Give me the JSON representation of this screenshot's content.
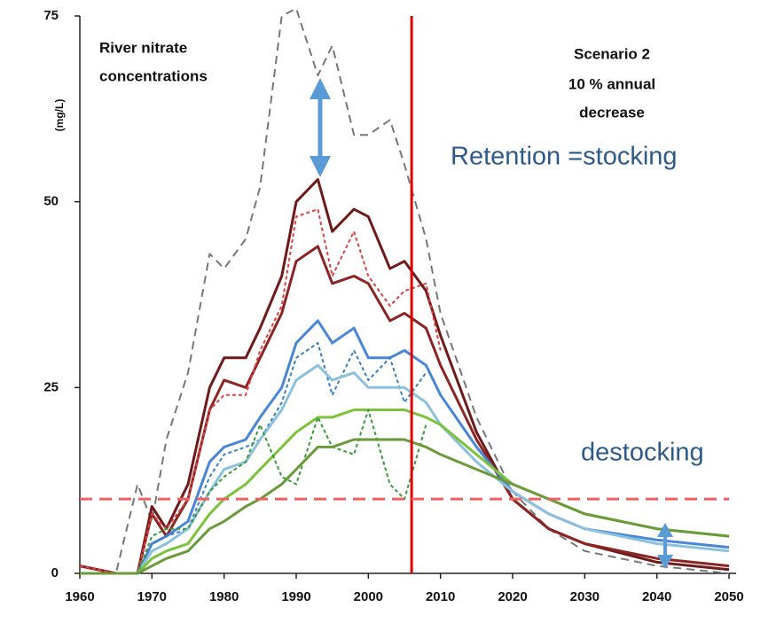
{
  "chart_data": {
    "type": "line",
    "y_label": "(mg/L)",
    "annotations": {
      "left": [
        "River nitrate",
        "concentrations"
      ],
      "right": [
        "Scenario 2",
        "10 % annual",
        "decrease"
      ],
      "retention": "Retention =stocking",
      "destocking": "destocking"
    },
    "x": [
      1960,
      1965,
      1968,
      1970,
      1972,
      1975,
      1978,
      1980,
      1983,
      1985,
      1988,
      1990,
      1993,
      1995,
      1998,
      2000,
      2003,
      2005,
      2008,
      2010,
      2015,
      2020,
      2025,
      2030,
      2040,
      2050
    ],
    "series": [
      {
        "color": "#777777",
        "dash": true,
        "values": [
          1,
          0,
          12,
          7,
          18,
          27,
          43,
          41,
          45,
          52,
          75,
          76,
          67,
          71,
          59,
          59,
          61,
          55,
          45,
          35,
          21,
          11,
          6,
          3,
          1,
          0
        ]
      },
      {
        "color": "#6e1a1a",
        "dash": false,
        "values": [
          1,
          0,
          0,
          9,
          6,
          12,
          25,
          29,
          29,
          33,
          40,
          50,
          53,
          46,
          49,
          48,
          41,
          42,
          38,
          32,
          19,
          10,
          6,
          4,
          1.5,
          0.5
        ]
      },
      {
        "color": "#8b2525",
        "dash": false,
        "values": [
          1,
          0,
          0,
          8,
          5,
          10,
          22,
          26,
          25,
          29,
          35,
          42,
          44,
          39,
          40,
          39,
          34,
          35,
          33,
          28,
          18,
          10,
          6,
          4,
          2,
          1
        ]
      },
      {
        "color": "#e04040",
        "dash": true,
        "values": [
          1,
          0,
          0,
          8,
          6,
          10,
          22,
          24,
          24,
          30,
          36,
          48,
          49,
          40,
          46,
          40,
          36,
          38,
          39,
          30,
          null,
          null,
          null,
          null,
          null,
          null
        ]
      },
      {
        "color": "#4a86d8",
        "dash": false,
        "values": [
          0,
          0,
          0,
          4,
          5,
          7,
          15,
          17,
          18,
          21,
          25,
          31,
          34,
          31,
          33,
          29,
          29,
          30,
          28,
          24,
          17,
          11,
          8,
          6,
          4.5,
          3.5
        ]
      },
      {
        "color": "#3a7fc0",
        "dash": true,
        "values": [
          0,
          0,
          0,
          4,
          5,
          6,
          13,
          16,
          17,
          18,
          23,
          29,
          31,
          24,
          30,
          26,
          29,
          23,
          27,
          null,
          null,
          null,
          null,
          null,
          null,
          null
        ]
      },
      {
        "color": "#8cc0dc",
        "dash": false,
        "values": [
          0,
          0,
          0,
          3,
          4,
          6,
          11,
          14,
          15,
          18,
          22,
          26,
          28,
          26,
          27,
          25,
          25,
          25,
          23,
          20,
          15,
          11,
          8,
          6,
          4,
          3
        ]
      },
      {
        "color": "#7cc23a",
        "dash": false,
        "values": [
          0,
          0,
          0,
          2,
          3,
          4,
          8,
          10,
          12,
          14,
          17,
          19,
          21,
          21,
          22,
          22,
          22,
          22,
          21,
          20,
          16,
          12,
          10,
          8,
          6,
          5
        ]
      },
      {
        "color": "#3a9a3a",
        "dash": true,
        "values": [
          0,
          0,
          0,
          5,
          6,
          6,
          11,
          13,
          15,
          20,
          13,
          12,
          21,
          17,
          16,
          22,
          12,
          10,
          20,
          null,
          null,
          null,
          null,
          null,
          null,
          null
        ]
      },
      {
        "color": "#6a9a3a",
        "dash": false,
        "values": [
          0,
          0,
          0,
          1,
          2,
          3,
          6,
          7,
          9,
          10,
          12,
          14,
          17,
          17,
          18,
          18,
          18,
          18,
          17,
          16,
          14,
          12,
          10,
          8,
          6,
          5
        ]
      }
    ],
    "reference_lines": [
      {
        "axis": "x",
        "value": 2006,
        "color": "#e00000",
        "dash": false
      },
      {
        "axis": "y",
        "value": 10,
        "color": "#f06060",
        "dash": true
      }
    ],
    "xlim": [
      1960,
      2050
    ],
    "ylim": [
      0,
      75
    ],
    "xticks": [
      1960,
      1970,
      1980,
      1990,
      2000,
      2010,
      2020,
      2030,
      2040,
      2050
    ],
    "yticks": [
      0,
      25,
      50,
      75
    ]
  }
}
